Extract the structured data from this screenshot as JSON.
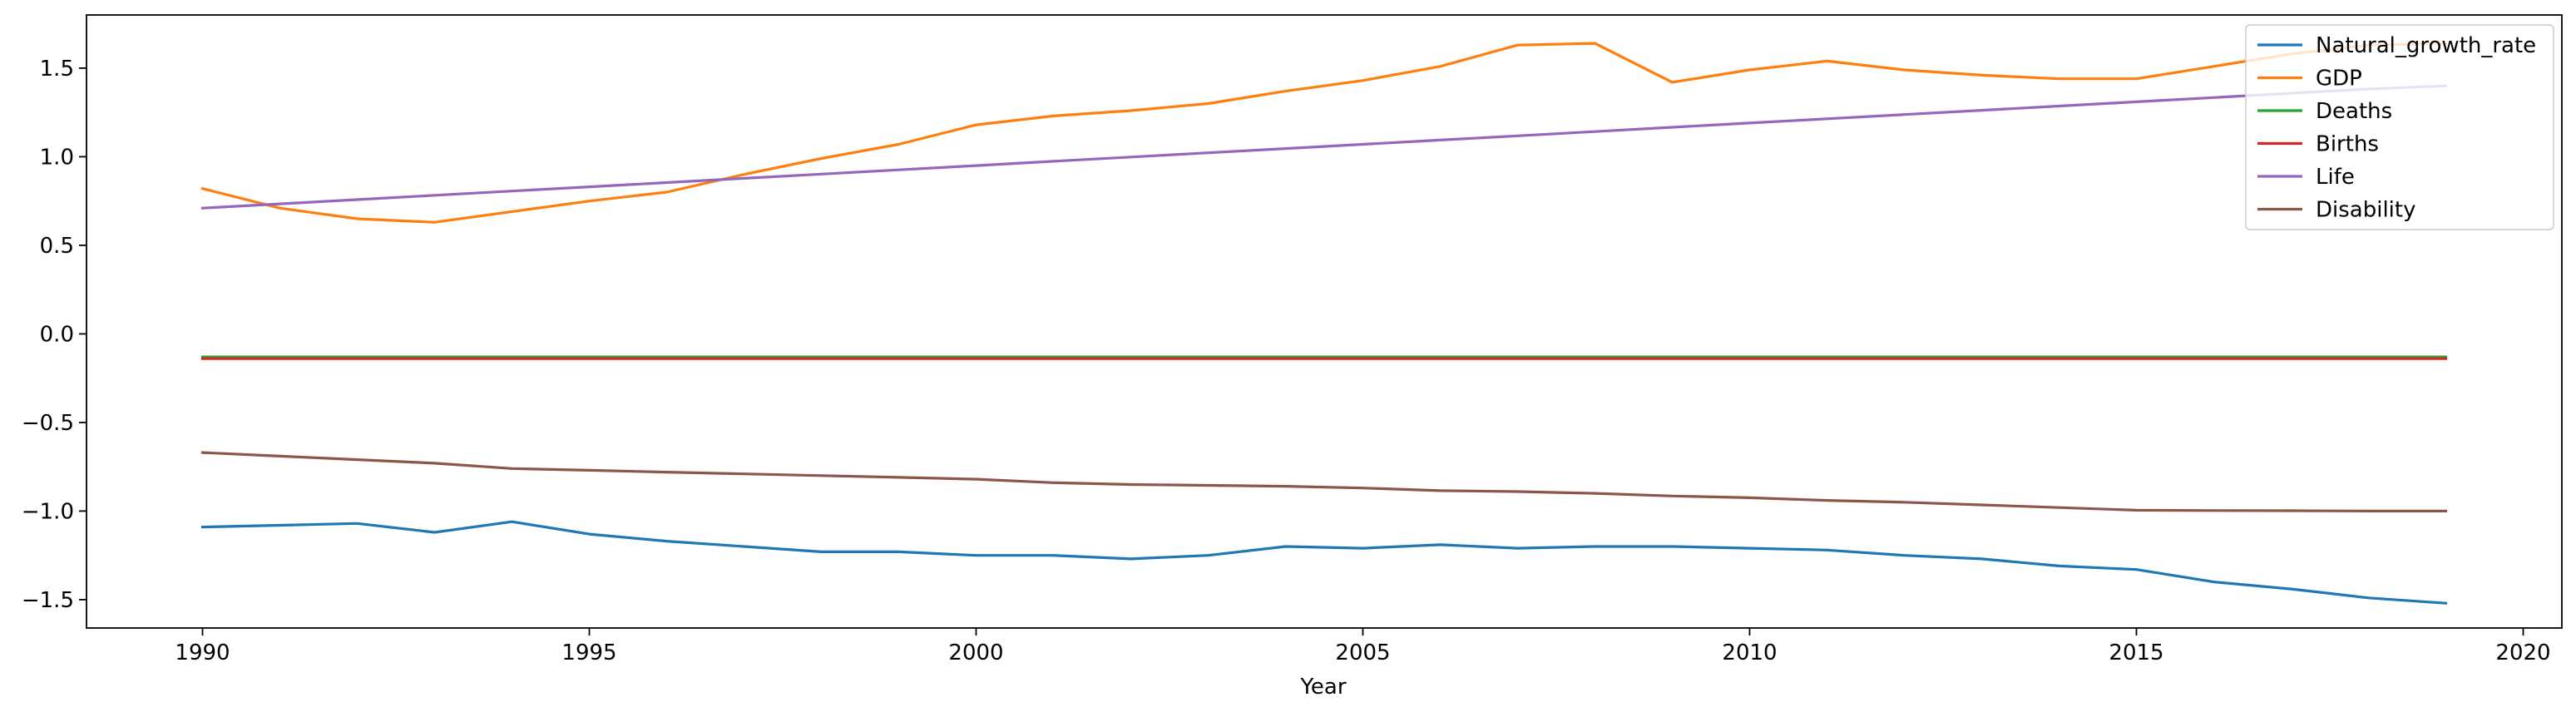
{
  "chart_data": {
    "type": "line",
    "title": "",
    "xlabel": "Year",
    "ylabel": "",
    "xlim": [
      1988.5,
      2020.5
    ],
    "ylim": [
      -1.66,
      1.8
    ],
    "x_ticks": [
      1990,
      1995,
      2000,
      2005,
      2010,
      2015,
      2020
    ],
    "x_tick_labels": [
      "1990",
      "1995",
      "2000",
      "2005",
      "2010",
      "2015",
      "2020"
    ],
    "y_ticks": [
      1.5,
      1.0,
      0.5,
      0.0,
      -0.5,
      -1.0,
      -1.5
    ],
    "y_tick_labels": [
      "1.5",
      "1.0",
      "0.5",
      "0.0",
      "−0.5",
      "−1.0",
      "−1.5"
    ],
    "grid": false,
    "legend_position": "top-right",
    "x": [
      1990,
      1991,
      1992,
      1993,
      1994,
      1995,
      1996,
      1997,
      1998,
      1999,
      2000,
      2001,
      2002,
      2003,
      2004,
      2005,
      2006,
      2007,
      2008,
      2009,
      2010,
      2011,
      2012,
      2013,
      2014,
      2015,
      2016,
      2017,
      2018,
      2019
    ],
    "series": [
      {
        "name": "Natural_growth_rate",
        "color": "#1f77b4",
        "values": [
          -1.09,
          -1.08,
          -1.07,
          -1.12,
          -1.06,
          -1.13,
          -1.17,
          -1.2,
          -1.23,
          -1.23,
          -1.25,
          -1.25,
          -1.27,
          -1.25,
          -1.2,
          -1.21,
          -1.19,
          -1.21,
          -1.2,
          -1.2,
          -1.21,
          -1.22,
          -1.25,
          -1.27,
          -1.31,
          -1.33,
          -1.4,
          -1.44,
          -1.49,
          -1.52
        ]
      },
      {
        "name": "GDP",
        "color": "#ff7f0e",
        "values": [
          0.82,
          0.71,
          0.65,
          0.63,
          0.69,
          0.75,
          0.8,
          0.9,
          0.99,
          1.07,
          1.18,
          1.23,
          1.26,
          1.3,
          1.37,
          1.43,
          1.51,
          1.63,
          1.64,
          1.42,
          1.49,
          1.54,
          1.49,
          1.46,
          1.44,
          1.44,
          1.51,
          1.58,
          1.63,
          1.64
        ]
      },
      {
        "name": "Deaths",
        "color": "#2ca02c",
        "values": [
          -0.13,
          -0.13,
          -0.13,
          -0.13,
          -0.13,
          -0.13,
          -0.13,
          -0.13,
          -0.13,
          -0.13,
          -0.13,
          -0.13,
          -0.13,
          -0.13,
          -0.13,
          -0.13,
          -0.13,
          -0.13,
          -0.13,
          -0.13,
          -0.13,
          -0.13,
          -0.13,
          -0.13,
          -0.13,
          -0.13,
          -0.13,
          -0.13,
          -0.13,
          -0.13
        ]
      },
      {
        "name": "Births",
        "color": "#d62728",
        "values": [
          -0.14,
          -0.14,
          -0.14,
          -0.14,
          -0.14,
          -0.14,
          -0.14,
          -0.14,
          -0.14,
          -0.14,
          -0.14,
          -0.14,
          -0.14,
          -0.14,
          -0.14,
          -0.14,
          -0.14,
          -0.14,
          -0.14,
          -0.14,
          -0.14,
          -0.14,
          -0.14,
          -0.14,
          -0.14,
          -0.14,
          -0.14,
          -0.14,
          -0.14,
          -0.14
        ]
      },
      {
        "name": "Life",
        "color": "#9467bd",
        "values": [
          0.71,
          0.734,
          0.758,
          0.782,
          0.806,
          0.83,
          0.854,
          0.878,
          0.902,
          0.926,
          0.95,
          0.974,
          0.998,
          1.022,
          1.046,
          1.07,
          1.094,
          1.118,
          1.142,
          1.166,
          1.19,
          1.214,
          1.238,
          1.262,
          1.286,
          1.31,
          1.334,
          1.358,
          1.382,
          1.4
        ]
      },
      {
        "name": "Disability",
        "color": "#8c564b",
        "values": [
          -0.67,
          -0.69,
          -0.71,
          -0.73,
          -0.76,
          -0.77,
          -0.78,
          -0.79,
          -0.8,
          -0.81,
          -0.82,
          -0.84,
          -0.85,
          -0.855,
          -0.86,
          -0.87,
          -0.885,
          -0.89,
          -0.9,
          -0.915,
          -0.925,
          -0.94,
          -0.95,
          -0.965,
          -0.98,
          -0.995,
          -0.997,
          -0.998,
          -1.0,
          -1.0
        ]
      }
    ]
  }
}
